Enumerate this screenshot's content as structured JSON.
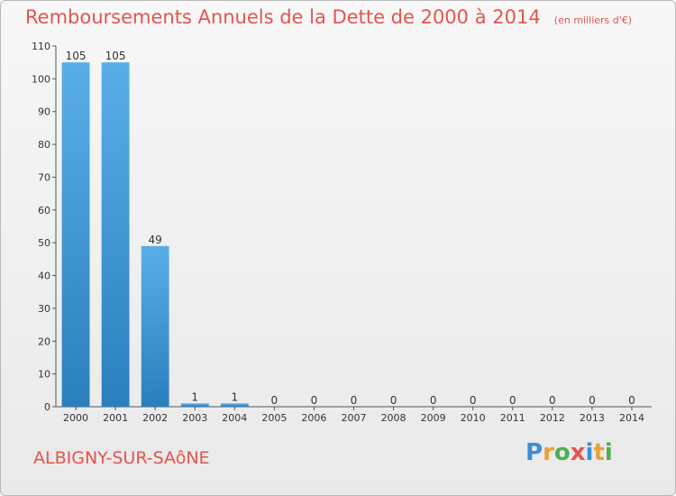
{
  "title": "Remboursements Annuels de la Dette de 2000 à 2014",
  "unit_note": "(en milliers d'€)",
  "commune": "ALBIGNY-SUR-SAôNE",
  "logo": {
    "text": "Proxiti",
    "letters": [
      {
        "ch": "P",
        "color": "#3a8fd6"
      },
      {
        "ch": "r",
        "color": "#e8a23a"
      },
      {
        "ch": "o",
        "color": "#4caf50"
      },
      {
        "ch": "x",
        "color": "#e2554f"
      },
      {
        "ch": "i",
        "color": "#3a8fd6"
      },
      {
        "ch": "t",
        "color": "#e8a23a"
      },
      {
        "ch": "i",
        "color": "#4caf50"
      }
    ]
  },
  "colors": {
    "bar_light": "#5aaee8",
    "bar_dark": "#2a7fbd",
    "title": "#e2554f"
  },
  "chart_data": {
    "type": "bar",
    "categories": [
      "2000",
      "2001",
      "2002",
      "2003",
      "2004",
      "2005",
      "2006",
      "2007",
      "2008",
      "2009",
      "2010",
      "2011",
      "2012",
      "2013",
      "2014"
    ],
    "values": [
      105,
      105,
      49,
      1,
      1,
      0,
      0,
      0,
      0,
      0,
      0,
      0,
      0,
      0,
      0
    ],
    "ylim": [
      0,
      110
    ],
    "yticks": [
      0,
      10,
      20,
      30,
      40,
      50,
      60,
      70,
      80,
      90,
      100,
      110
    ],
    "grid": false,
    "data_labels": true
  }
}
